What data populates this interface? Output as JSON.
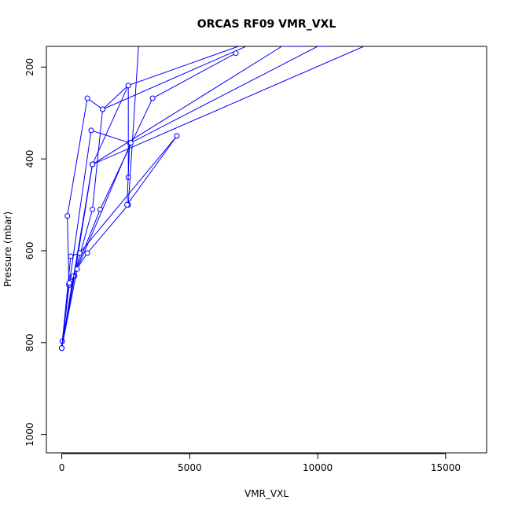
{
  "chart_data": {
    "type": "line",
    "title": "ORCAS RF09 VMR_VXL",
    "xlabel": "VMR_VXL",
    "ylabel": "Pressure (mbar)",
    "xlim": [
      -600,
      16600
    ],
    "ylim": [
      1040,
      155
    ],
    "y_reversed": true,
    "x_ticks": [
      0,
      5000,
      10000,
      15000
    ],
    "y_ticks": [
      200,
      400,
      600,
      800,
      1000
    ],
    "grid": false,
    "color": "#0000ff",
    "marker": "open-circle",
    "series": [
      {
        "x": [
          0,
          20,
          280,
          380,
          1000,
          2600,
          3000
        ],
        "y": [
          812,
          797,
          672,
          657,
          605,
          500,
          155
        ]
      },
      {
        "x": [
          0,
          280,
          220,
          1000,
          1600,
          7200
        ],
        "y": [
          812,
          675,
          524,
          268,
          292,
          155
        ]
      },
      {
        "x": [
          0,
          480,
          1200,
          1600,
          2600,
          6900
        ],
        "y": [
          812,
          655,
          510,
          292,
          240,
          155
        ]
      },
      {
        "x": [
          0,
          500,
          1200,
          2600,
          2600
        ],
        "y": [
          812,
          655,
          412,
          240,
          440
        ]
      },
      {
        "x": [
          0,
          350,
          700,
          4500
        ],
        "y": [
          812,
          612,
          605,
          350
        ]
      },
      {
        "x": [
          0,
          450,
          1500,
          3550,
          6800
        ],
        "y": [
          812,
          655,
          510,
          268,
          170
        ]
      },
      {
        "x": [
          0,
          300,
          1150,
          2650,
          2550,
          4500
        ],
        "y": [
          812,
          670,
          338,
          365,
          500,
          350
        ]
      },
      {
        "x": [
          0,
          1200,
          8600,
          9500
        ],
        "y": [
          812,
          412,
          155,
          155
        ]
      },
      {
        "x": [
          0,
          600,
          2700,
          10000,
          10500
        ],
        "y": [
          812,
          640,
          365,
          155,
          155
        ]
      },
      {
        "x": [
          0,
          1200,
          11800
        ],
        "y": [
          812,
          412,
          155
        ]
      }
    ]
  }
}
